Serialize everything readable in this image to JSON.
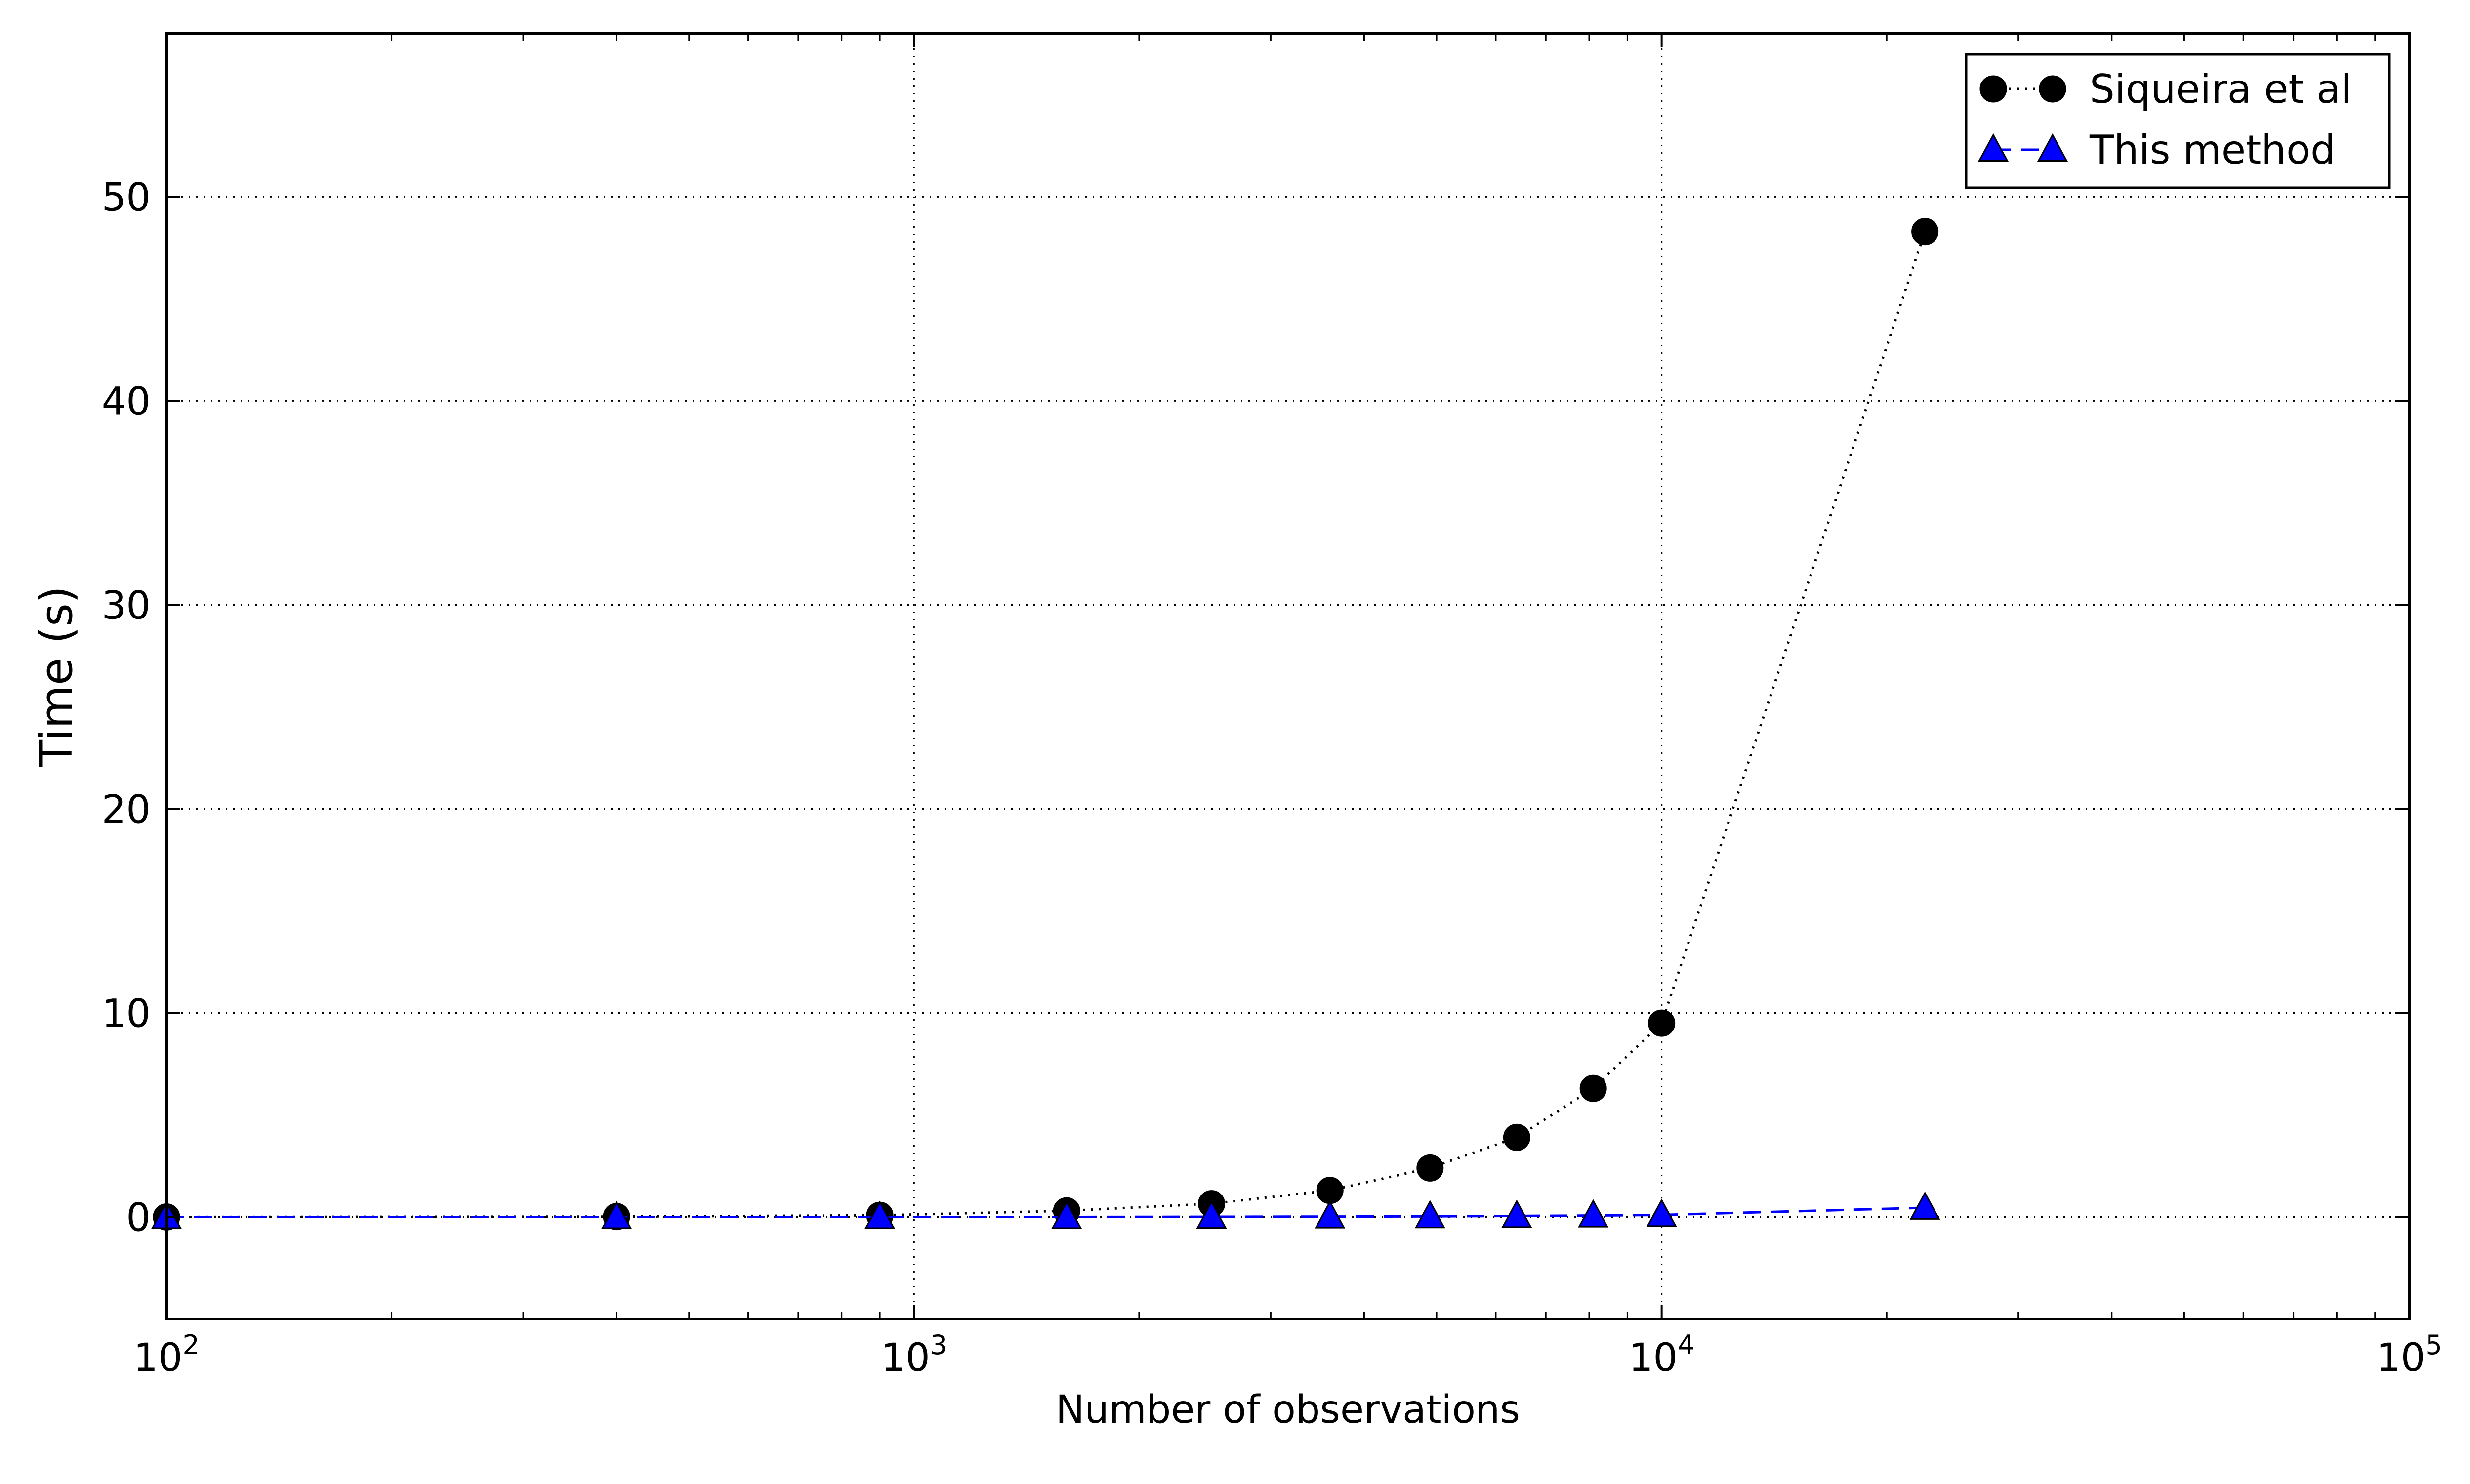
{
  "chart_data": {
    "type": "line",
    "title": "",
    "xlabel": "Number of observations",
    "ylabel": "Time (s)",
    "xscale": "log",
    "xlim": [
      100,
      100000
    ],
    "ylim": [
      -5,
      58
    ],
    "grid": true,
    "legend_position": "top-right",
    "x_ticks": [
      {
        "value": 100,
        "base": "10",
        "exp": "2"
      },
      {
        "value": 1000,
        "base": "10",
        "exp": "3"
      },
      {
        "value": 10000,
        "base": "10",
        "exp": "4"
      },
      {
        "value": 100000,
        "base": "10",
        "exp": "5"
      }
    ],
    "y_ticks": [
      {
        "value": 0,
        "label": "0"
      },
      {
        "value": 10,
        "label": "10"
      },
      {
        "value": 20,
        "label": "20"
      },
      {
        "value": 30,
        "label": "30"
      },
      {
        "value": 40,
        "label": "40"
      },
      {
        "value": 50,
        "label": "50"
      }
    ],
    "series": [
      {
        "name": "Siqueira et al",
        "color": "#000000",
        "marker": "circle",
        "linestyle": "dotted",
        "x": [
          100,
          400,
          900,
          1600,
          2500,
          3600,
          4900,
          6400,
          8100,
          10000,
          22500
        ],
        "y": [
          0.0,
          0.02,
          0.08,
          0.3,
          0.65,
          1.3,
          2.4,
          3.9,
          6.3,
          9.5,
          48.3
        ]
      },
      {
        "name": "This method",
        "color": "#0000ff",
        "marker": "triangle",
        "linestyle": "dashed",
        "x": [
          100,
          400,
          900,
          1600,
          2500,
          3600,
          4900,
          6400,
          8100,
          10000,
          22500
        ],
        "y": [
          0.0,
          0.0,
          0.0,
          0.0,
          0.01,
          0.02,
          0.03,
          0.05,
          0.07,
          0.1,
          0.45
        ]
      }
    ]
  }
}
